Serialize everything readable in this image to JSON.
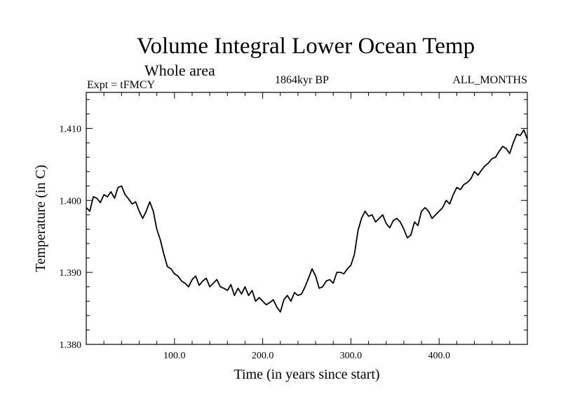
{
  "chart_data": {
    "type": "line",
    "title": "Volume Integral Lower Ocean Temp",
    "subtitle": "Whole area",
    "experiment_label": "Expt = tFMCY",
    "period_label": "1864kyr BP",
    "months_label": "ALL_MONTHS",
    "xlabel": "Time (in years since start)",
    "ylabel": "Temperature (in C)",
    "xlim": [
      0,
      500
    ],
    "ylim": [
      1.38,
      1.415
    ],
    "x_ticks": [
      100,
      200,
      300,
      400
    ],
    "x_tick_labels": [
      "100.0",
      "200.0",
      "300.0",
      "400.0"
    ],
    "y_ticks": [
      1.38,
      1.39,
      1.4,
      1.41
    ],
    "y_tick_labels": [
      "1.380",
      "1.390",
      "1.400",
      "1.410"
    ],
    "line_color": "#000000",
    "series": [
      {
        "name": "Volume Integral Lower Ocean Temp",
        "x": [
          0,
          4,
          8,
          12,
          16,
          20,
          24,
          28,
          32,
          36,
          40,
          44,
          48,
          52,
          56,
          60,
          64,
          68,
          72,
          76,
          80,
          84,
          88,
          92,
          96,
          100,
          104,
          108,
          112,
          116,
          120,
          124,
          128,
          132,
          136,
          140,
          144,
          148,
          152,
          156,
          160,
          164,
          168,
          172,
          176,
          180,
          184,
          188,
          192,
          196,
          200,
          204,
          208,
          212,
          216,
          220,
          224,
          228,
          232,
          236,
          240,
          244,
          248,
          252,
          256,
          260,
          264,
          268,
          272,
          276,
          280,
          284,
          288,
          292,
          296,
          300,
          304,
          308,
          312,
          316,
          320,
          324,
          328,
          332,
          336,
          340,
          344,
          348,
          352,
          356,
          360,
          364,
          368,
          372,
          376,
          380,
          384,
          388,
          392,
          396,
          400,
          404,
          408,
          412,
          416,
          420,
          424,
          428,
          432,
          436,
          440,
          444,
          448,
          452,
          456,
          460,
          464,
          468,
          472,
          476,
          480,
          484,
          488,
          492,
          496,
          500
        ],
        "values": [
          1.399,
          1.3985,
          1.4005,
          1.4003,
          1.3997,
          1.4008,
          1.4005,
          1.4012,
          1.4003,
          1.4018,
          1.402,
          1.4008,
          1.4002,
          1.3995,
          1.3998,
          1.3985,
          1.3975,
          1.3985,
          1.3998,
          1.3985,
          1.396,
          1.3945,
          1.3925,
          1.3908,
          1.3905,
          1.3898,
          1.3895,
          1.3888,
          1.3885,
          1.388,
          1.389,
          1.3895,
          1.3882,
          1.3888,
          1.3892,
          1.388,
          1.3885,
          1.389,
          1.388,
          1.3878,
          1.3875,
          1.3883,
          1.3868,
          1.3878,
          1.387,
          1.388,
          1.3868,
          1.3875,
          1.386,
          1.3865,
          1.386,
          1.3855,
          1.3858,
          1.3862,
          1.3852,
          1.3845,
          1.3862,
          1.3868,
          1.386,
          1.3872,
          1.3868,
          1.387,
          1.388,
          1.3892,
          1.3905,
          1.3895,
          1.3878,
          1.388,
          1.3888,
          1.389,
          1.3885,
          1.39,
          1.39,
          1.3898,
          1.3905,
          1.391,
          1.3925,
          1.3958,
          1.3975,
          1.3985,
          1.3978,
          1.398,
          1.397,
          1.3975,
          1.398,
          1.3968,
          1.3962,
          1.3972,
          1.3975,
          1.397,
          1.396,
          1.3948,
          1.3952,
          1.397,
          1.3965,
          1.3985,
          1.399,
          1.3985,
          1.3975,
          1.398,
          1.3985,
          1.399,
          1.4,
          1.3995,
          1.4008,
          1.4018,
          1.4015,
          1.4022,
          1.4025,
          1.403,
          1.404,
          1.4035,
          1.4042,
          1.4048,
          1.4052,
          1.4058,
          1.406,
          1.4068,
          1.4075,
          1.4072,
          1.4065,
          1.408,
          1.4092,
          1.409,
          1.4098,
          1.4085
        ]
      }
    ]
  }
}
